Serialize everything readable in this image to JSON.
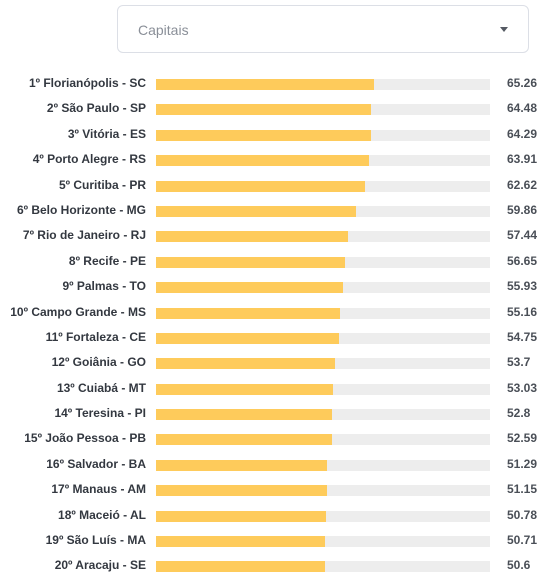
{
  "filter": {
    "selected": "Capitais",
    "caret_icon": "chevron-down-icon"
  },
  "colors": {
    "bar_fill": "#fecb5b",
    "bar_track": "#ededed"
  },
  "chart_data": {
    "type": "bar",
    "orientation": "horizontal",
    "title": "",
    "xlabel": "",
    "ylabel": "",
    "xlim": [
      0,
      100
    ],
    "categories": [
      "1º Florianópolis - SC",
      "2º São Paulo - SP",
      "3º Vitória - ES",
      "4º Porto Alegre - RS",
      "5º Curitiba - PR",
      "6º Belo Horizonte - MG",
      "7º Rio de Janeiro - RJ",
      "8º Recife - PE",
      "9º Palmas - TO",
      "10º Campo Grande - MS",
      "11º Fortaleza - CE",
      "12º Goiânia - GO",
      "13º Cuiabá - MT",
      "14º Teresina - PI",
      "15º João Pessoa - PB",
      "16º Salvador - BA",
      "17º Manaus - AM",
      "18º Maceió - AL",
      "19º São Luís - MA",
      "20º Aracaju - SE"
    ],
    "values": [
      65.26,
      64.48,
      64.29,
      63.91,
      62.62,
      59.86,
      57.44,
      56.65,
      55.93,
      55.16,
      54.75,
      53.7,
      53.03,
      52.8,
      52.59,
      51.29,
      51.15,
      50.78,
      50.71,
      50.6
    ]
  }
}
